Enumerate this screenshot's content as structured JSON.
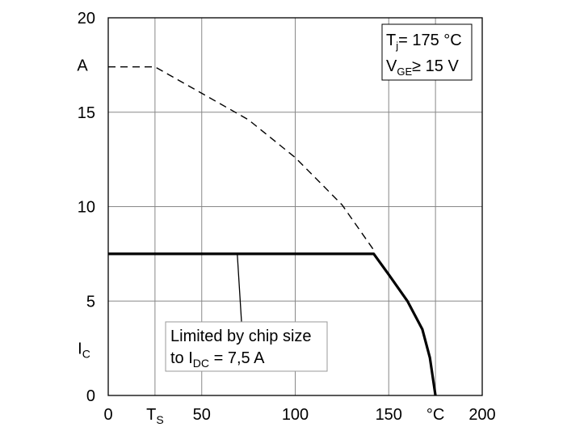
{
  "chart_data": {
    "type": "line",
    "title": "",
    "xlabel": "°C",
    "ylabel": "I",
    "ylabel_sub": "C",
    "y_unit_label": "A",
    "xlim": [
      0,
      200
    ],
    "ylim": [
      0,
      20
    ],
    "grid": true,
    "x_ticks": [
      {
        "value": 0,
        "label": "0"
      },
      {
        "value": 25,
        "label": "T",
        "sub": "S"
      },
      {
        "value": 50,
        "label": "50"
      },
      {
        "value": 100,
        "label": "100"
      },
      {
        "value": 150,
        "label": "150"
      },
      {
        "value": 175,
        "label": "°C"
      },
      {
        "value": 200,
        "label": "200"
      }
    ],
    "y_ticks": [
      {
        "value": 0,
        "label": "0"
      },
      {
        "value": 5,
        "label": "5"
      },
      {
        "value": 10,
        "label": "10"
      },
      {
        "value": 15,
        "label": "15"
      },
      {
        "value": 20,
        "label": "20"
      }
    ],
    "series": [
      {
        "style": "dashed",
        "color": "#000000",
        "points": [
          [
            0,
            17.4
          ],
          [
            25,
            17.4
          ],
          [
            50,
            16.0
          ],
          [
            75,
            14.6
          ],
          [
            100,
            12.6
          ],
          [
            125,
            10.1
          ],
          [
            142,
            7.7
          ]
        ]
      },
      {
        "style": "solid-bold",
        "color": "#000000",
        "points": [
          [
            0,
            7.5
          ],
          [
            142,
            7.5
          ],
          [
            150,
            6.4
          ],
          [
            160,
            5.0
          ],
          [
            168,
            3.5
          ],
          [
            172,
            2.0
          ],
          [
            175,
            0
          ]
        ]
      }
    ],
    "annotations": {
      "conditions": {
        "line1_a": "T",
        "line1_sub": "j",
        "line1_b": "= 175 °C",
        "line2_a": "V",
        "line2_sub": "GE",
        "line2_b": "≥ 15 V",
        "position": "top-right"
      },
      "limit": {
        "line1": "Limited by chip size",
        "line2_a": "to I",
        "line2_sub": "DC",
        "line2_b": " = 7,5 A",
        "pointer_to": [
          69,
          7.5
        ]
      }
    }
  }
}
